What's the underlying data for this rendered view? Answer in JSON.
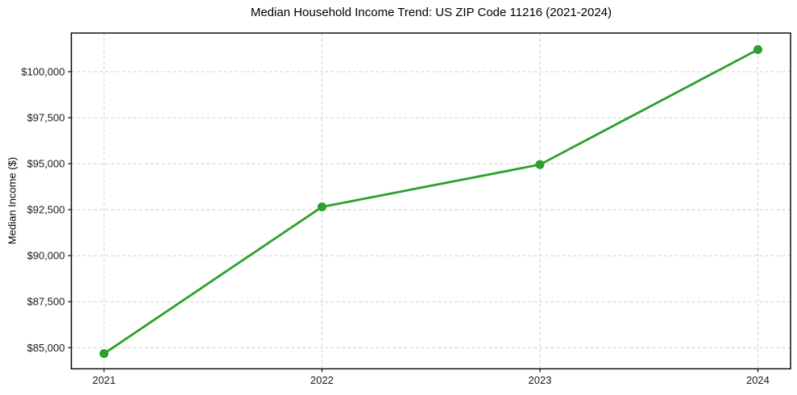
{
  "chart_data": {
    "type": "line",
    "title": "Median Household Income Trend: US ZIP Code 11216 (2021-2024)",
    "ylabel": "Median Income ($)",
    "xlabel": "",
    "x": [
      2021,
      2022,
      2023,
      2024
    ],
    "y": [
      84675,
      92650,
      94950,
      101200
    ],
    "xtick_values": [
      2021,
      2022,
      2023,
      2024
    ],
    "xtick_labels": [
      "2021",
      "2022",
      "2023",
      "2024"
    ],
    "ytick_values": [
      85000,
      87500,
      90000,
      92500,
      95000,
      97500,
      100000
    ],
    "ytick_labels": [
      "$85,000",
      "$87,500",
      "$90,000",
      "$92,500",
      "$95,000",
      "$97,500",
      "$100,000"
    ],
    "xlim": [
      2020.85,
      2024.15
    ],
    "ylim": [
      83850,
      102100
    ],
    "grid": true,
    "grid_style": "dashed",
    "legend": "none",
    "line_color": "#2ca02c",
    "marker": "circle",
    "grid_color": "#d0d0d0",
    "spine_color": "#000000",
    "background_color": "#ffffff"
  }
}
